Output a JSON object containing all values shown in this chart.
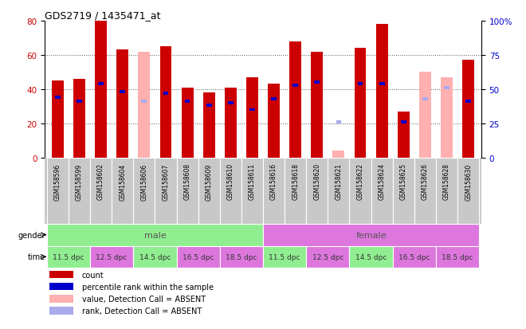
{
  "title": "GDS2719 / 1435471_at",
  "samples": [
    "GSM158596",
    "GSM158599",
    "GSM158602",
    "GSM158604",
    "GSM158606",
    "GSM158607",
    "GSM158608",
    "GSM158609",
    "GSM158610",
    "GSM158611",
    "GSM158616",
    "GSM158618",
    "GSM158620",
    "GSM158621",
    "GSM158622",
    "GSM158624",
    "GSM158625",
    "GSM158626",
    "GSM158628",
    "GSM158630"
  ],
  "count_values": [
    45,
    46,
    80,
    63,
    62,
    65,
    41,
    38,
    41,
    47,
    43,
    68,
    62,
    4,
    64,
    78,
    27,
    50,
    47,
    57
  ],
  "rank_values": [
    44,
    41,
    54,
    48,
    41,
    47,
    41,
    38,
    40,
    35,
    43,
    53,
    55,
    26,
    54,
    54,
    26,
    43,
    51,
    41
  ],
  "absent": [
    false,
    false,
    false,
    false,
    true,
    false,
    false,
    false,
    false,
    false,
    false,
    false,
    false,
    true,
    false,
    false,
    false,
    true,
    true,
    false
  ],
  "rank_absent": [
    false,
    false,
    false,
    false,
    true,
    false,
    false,
    false,
    false,
    false,
    false,
    false,
    false,
    true,
    false,
    false,
    false,
    true,
    true,
    false
  ],
  "ylim_left": [
    0,
    80
  ],
  "ylim_right": [
    0,
    100
  ],
  "yticks_left": [
    0,
    20,
    40,
    60,
    80
  ],
  "yticks_right": [
    0,
    25,
    50,
    75,
    100
  ],
  "color_red": "#CC0000",
  "color_blue": "#0000CC",
  "color_pink": "#FFB0B0",
  "color_lightblue": "#AAAAEE",
  "color_male_bg": "#90EE90",
  "color_female_bg": "#DD77DD",
  "color_tick_bg": "#C8C8C8",
  "time_colors": [
    "#90EE90",
    "#DD77DD",
    "#90EE90",
    "#DD77DD",
    "#DD77DD",
    "#90EE90",
    "#DD77DD",
    "#90EE90",
    "#DD77DD",
    "#DD77DD"
  ],
  "time_groups": [
    [
      0,
      1,
      "11.5 dpc"
    ],
    [
      2,
      3,
      "12.5 dpc"
    ],
    [
      4,
      5,
      "14.5 dpc"
    ],
    [
      6,
      7,
      "16.5 dpc"
    ],
    [
      8,
      9,
      "18.5 dpc"
    ],
    [
      10,
      11,
      "11.5 dpc"
    ],
    [
      12,
      13,
      "12.5 dpc"
    ],
    [
      14,
      15,
      "14.5 dpc"
    ],
    [
      16,
      17,
      "16.5 dpc"
    ],
    [
      18,
      19,
      "18.5 dpc"
    ]
  ],
  "bar_width": 0.55
}
